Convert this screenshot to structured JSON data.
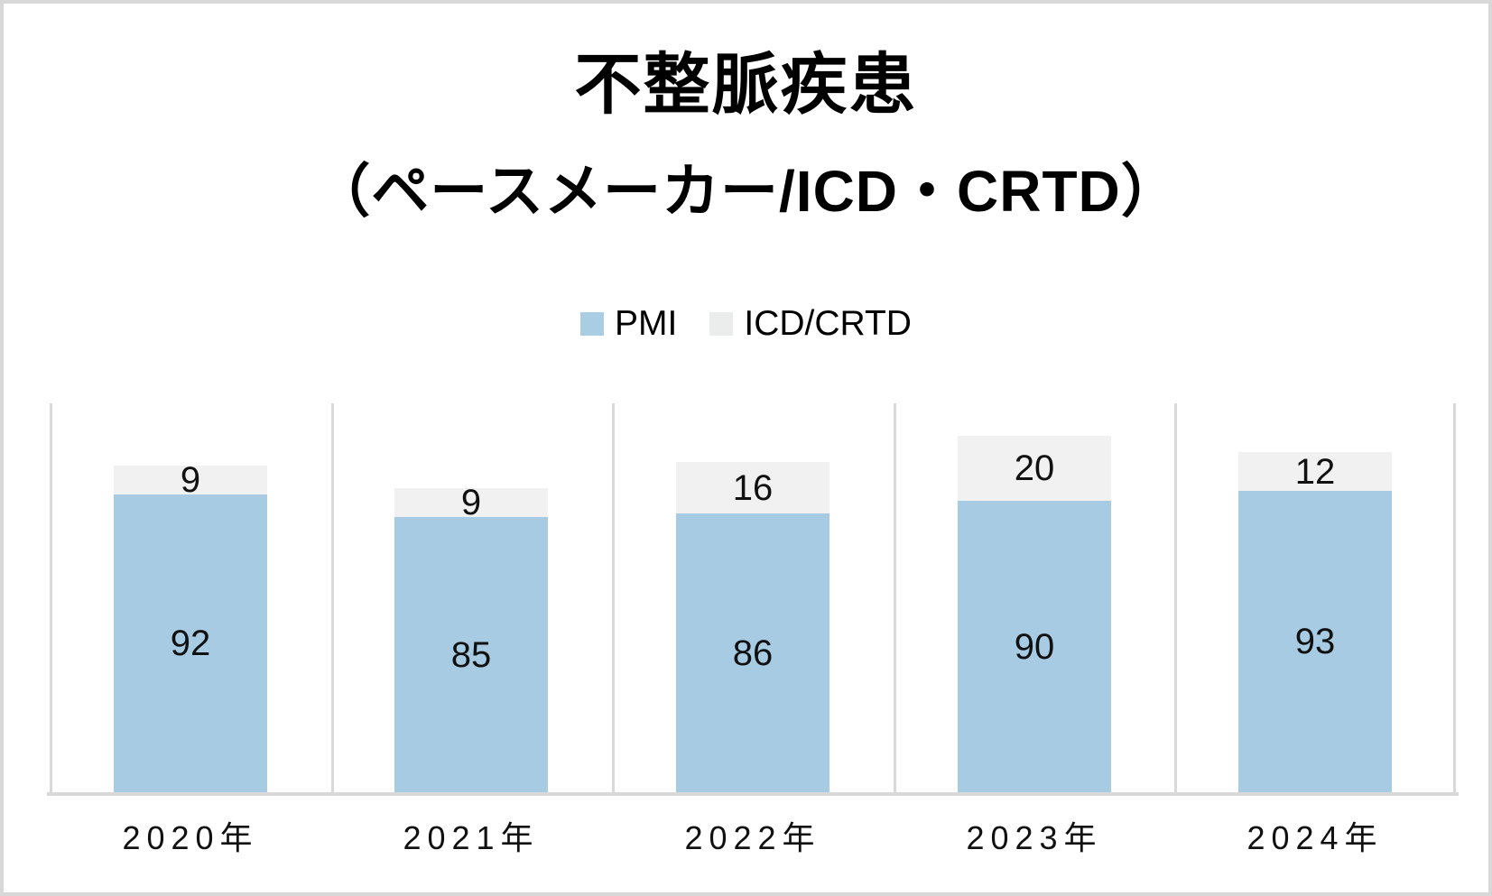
{
  "title": {
    "line1": "不整脈疾患",
    "line2": "（ペースメーカー/ICD・CRTD）"
  },
  "legend": {
    "items": [
      {
        "label": "PMI",
        "color": "#a9cde2"
      },
      {
        "label": "ICD/CRTD",
        "color": "#ebeded"
      }
    ]
  },
  "chart_data": {
    "type": "bar",
    "stacked": true,
    "title": "不整脈疾患（ペースメーカー/ICD・CRTD）",
    "categories": [
      "2020年",
      "2021年",
      "2022年",
      "2023年",
      "2024年"
    ],
    "series": [
      {
        "name": "PMI",
        "color": "#a7cbe2",
        "values": [
          92,
          85,
          86,
          90,
          93
        ]
      },
      {
        "name": "ICD/CRTD",
        "color": "#f1f1f1",
        "values": [
          9,
          9,
          16,
          20,
          12
        ]
      }
    ],
    "xlabel": "",
    "ylabel": "",
    "ylim": [
      0,
      120
    ],
    "grid": "vertical lines at category boundaries only",
    "legend_position": "top-center",
    "data_labels": "values centered inside each segment"
  },
  "colors": {
    "gridline": "#d9d9d9",
    "axis_line": "#d9d9d9",
    "frame_border": "#d8d8d8",
    "background": "#ffffff",
    "label_text": "#111111"
  }
}
